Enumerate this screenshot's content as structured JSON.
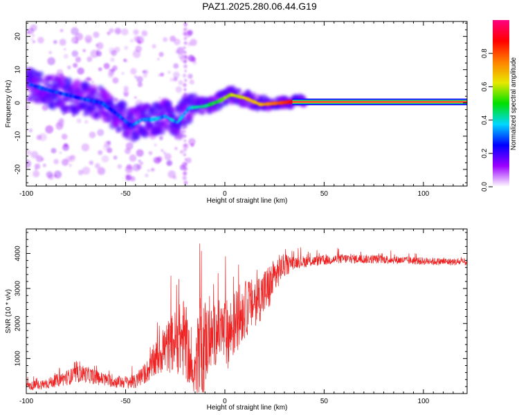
{
  "title": "PAZ1.2025.280.06.44.G19",
  "chart_data": [
    {
      "type": "heatmap",
      "id": "spectrogram",
      "xlabel": "Height of straight line (km)",
      "ylabel": "Frequency (Hz)",
      "xlim": [
        -100,
        122
      ],
      "ylim": [
        -25,
        24.5
      ],
      "x_ticks": [
        -100,
        -50,
        0,
        50,
        100
      ],
      "x_tick_labels": [
        "-100",
        "-50",
        "0",
        "50",
        "100"
      ],
      "y_ticks": [
        -20,
        -10,
        0,
        10,
        20
      ],
      "y_tick_labels": [
        "-20",
        "-10",
        "0",
        "10",
        "20"
      ],
      "ridge": [
        {
          "x": -98,
          "y": 5.5
        },
        {
          "x": -90,
          "y": 4
        },
        {
          "x": -80,
          "y": 2.5
        },
        {
          "x": -70,
          "y": 1
        },
        {
          "x": -62,
          "y": 0
        },
        {
          "x": -55,
          "y": -3
        },
        {
          "x": -47,
          "y": -7
        },
        {
          "x": -42,
          "y": -5
        },
        {
          "x": -36,
          "y": -5
        },
        {
          "x": -30,
          "y": -4
        },
        {
          "x": -24,
          "y": -6
        },
        {
          "x": -18,
          "y": -1.5
        },
        {
          "x": -10,
          "y": -1
        },
        {
          "x": -3,
          "y": 0.5
        },
        {
          "x": 3,
          "y": 2.5
        },
        {
          "x": 10,
          "y": 1.5
        },
        {
          "x": 18,
          "y": -0.5
        },
        {
          "x": 28,
          "y": 0
        },
        {
          "x": 36,
          "y": 0.5
        },
        {
          "x": 122,
          "y": 0.2
        }
      ],
      "colorbar": {
        "label": "Normalized spectral amplitude",
        "range": [
          0,
          1
        ],
        "ticks": [
          0.0,
          0.2,
          0.4,
          0.6,
          0.8
        ],
        "tick_labels": [
          "0.0",
          "0.2",
          "0.4",
          "0.6",
          "0.8"
        ],
        "colors": [
          "#ffffff",
          "#9b00ff",
          "#0000ff",
          "#00d8ff",
          "#00e000",
          "#e8e800",
          "#ff7f00",
          "#ff0000",
          "#ff0080"
        ]
      }
    },
    {
      "type": "line",
      "id": "snr",
      "xlabel": "Height of straight line (km)",
      "ylabel": "SNR (10 * v/v)",
      "xlim": [
        -100,
        122
      ],
      "ylim": [
        0,
        4700
      ],
      "x_ticks": [
        -100,
        -50,
        0,
        50,
        100
      ],
      "x_tick_labels": [
        "-100",
        "-50",
        "0",
        "50",
        "100"
      ],
      "y_ticks": [
        1000,
        2000,
        3000,
        4000
      ],
      "y_tick_labels": [
        "1000",
        "2000",
        "3000",
        "4000"
      ],
      "color": "#ee2222",
      "envelope": [
        {
          "x": -100,
          "base": 200,
          "amp": 120
        },
        {
          "x": -90,
          "base": 280,
          "amp": 150
        },
        {
          "x": -80,
          "base": 450,
          "amp": 220
        },
        {
          "x": -72,
          "base": 580,
          "amp": 250
        },
        {
          "x": -62,
          "base": 420,
          "amp": 200
        },
        {
          "x": -55,
          "base": 330,
          "amp": 170
        },
        {
          "x": -45,
          "base": 330,
          "amp": 200
        },
        {
          "x": -38,
          "base": 700,
          "amp": 350
        },
        {
          "x": -32,
          "base": 1200,
          "amp": 650
        },
        {
          "x": -25,
          "base": 1500,
          "amp": 900
        },
        {
          "x": -20,
          "base": 1600,
          "amp": 1200
        },
        {
          "x": -16,
          "base": 400,
          "amp": 400
        },
        {
          "x": -12,
          "base": 1400,
          "amp": 1800
        },
        {
          "x": -8,
          "base": 1500,
          "amp": 900
        },
        {
          "x": -3,
          "base": 1800,
          "amp": 900
        },
        {
          "x": 2,
          "base": 1700,
          "amp": 1000
        },
        {
          "x": 8,
          "base": 2300,
          "amp": 900
        },
        {
          "x": 15,
          "base": 2600,
          "amp": 700
        },
        {
          "x": 22,
          "base": 3000,
          "amp": 700
        },
        {
          "x": 28,
          "base": 3600,
          "amp": 400
        },
        {
          "x": 35,
          "base": 3750,
          "amp": 180
        },
        {
          "x": 50,
          "base": 3800,
          "amp": 140
        },
        {
          "x": 60,
          "base": 3850,
          "amp": 140
        },
        {
          "x": 80,
          "base": 3830,
          "amp": 120
        },
        {
          "x": 100,
          "base": 3780,
          "amp": 110
        },
        {
          "x": 122,
          "base": 3750,
          "amp": 100
        }
      ]
    }
  ]
}
